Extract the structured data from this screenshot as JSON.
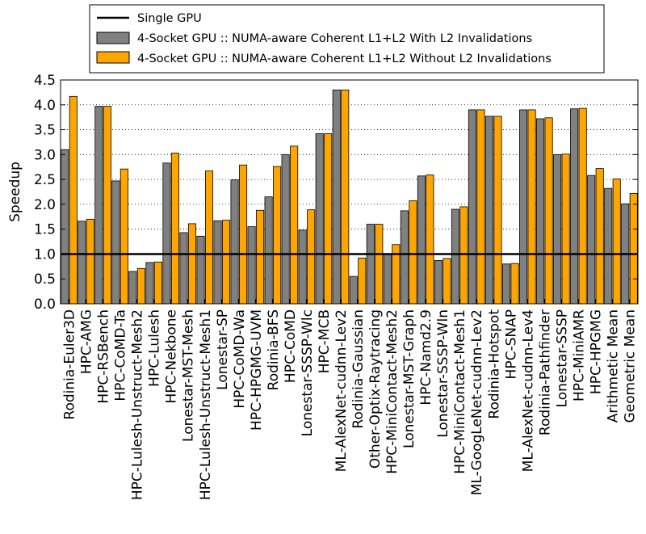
{
  "chart_data": {
    "type": "bar",
    "ylabel": "Speedup",
    "xlabel": "",
    "ylim": [
      0.0,
      4.5
    ],
    "yticks": [
      "0.0",
      "0.5",
      "1.0",
      "1.5",
      "2.0",
      "2.5",
      "3.0",
      "3.5",
      "4.0",
      "4.5"
    ],
    "grid": "horizontal dotted",
    "legend_position": "top",
    "baseline": {
      "name": "Single GPU",
      "value": 1.0,
      "color": "#000000"
    },
    "categories": [
      "Rodinia-Euler3D",
      "HPC-AMG",
      "HPC-RSBench",
      "HPC-CoMD-Ta",
      "HPC-Lulesh-Unstruct-Mesh2",
      "HPC-Lulesh",
      "HPC-Nekbone",
      "Lonestar-MST-Mesh",
      "HPC-Lulesh-Unstruct-Mesh1",
      "Lonestar-SP",
      "HPC-CoMD-Wa",
      "HPC-HPGMG-UVM",
      "Rodinia-BFS",
      "HPC-CoMD",
      "Lonestar-SSSP-Wlc",
      "HPC-MCB",
      "ML-AlexNet-cudnn-Lev2",
      "Rodinia-Gaussian",
      "Other-Optix-Raytracing",
      "HPC-MiniContact-Mesh2",
      "Lonestar-MST-Graph",
      "HPC-Namd2.9",
      "Lonestar-SSSP-Wln",
      "HPC-MiniContact-Mesh1",
      "ML-GoogLeNet-cudnn-Lev2",
      "Rodinia-Hotspot",
      "HPC-SNAP",
      "ML-AlexNet-cudnn-Lev4",
      "Rodinia-Pathfinder",
      "Lonestar-SSSP",
      "HPC-MiniAMR",
      "HPC-HPGMG",
      "Arithmetic Mean",
      "Geometric Mean"
    ],
    "series": [
      {
        "name": "4-Socket GPU :: NUMA-aware Coherent L1+L2 With L2 Invalidations",
        "color": "#808080",
        "values": [
          3.1,
          1.66,
          3.97,
          2.47,
          0.65,
          0.83,
          2.83,
          1.43,
          1.36,
          1.67,
          2.49,
          1.55,
          2.15,
          3.0,
          1.48,
          3.42,
          4.3,
          0.55,
          1.6,
          1.0,
          1.87,
          2.57,
          0.87,
          1.9,
          3.9,
          3.77,
          0.8,
          3.9,
          3.72,
          3.0,
          3.92,
          2.58,
          2.32,
          2.01
        ]
      },
      {
        "name": "4-Socket GPU :: NUMA-aware Coherent L1+L2 Without L2 Invalidations",
        "color": "#FFA500",
        "values": [
          4.17,
          1.7,
          3.97,
          2.71,
          0.71,
          0.84,
          3.03,
          1.61,
          2.67,
          1.68,
          2.79,
          1.88,
          2.76,
          3.17,
          1.89,
          3.42,
          4.3,
          0.92,
          1.6,
          1.19,
          2.07,
          2.59,
          0.91,
          1.95,
          3.9,
          3.77,
          0.81,
          3.9,
          3.74,
          3.01,
          3.93,
          2.72,
          2.51,
          2.22
        ]
      }
    ]
  }
}
